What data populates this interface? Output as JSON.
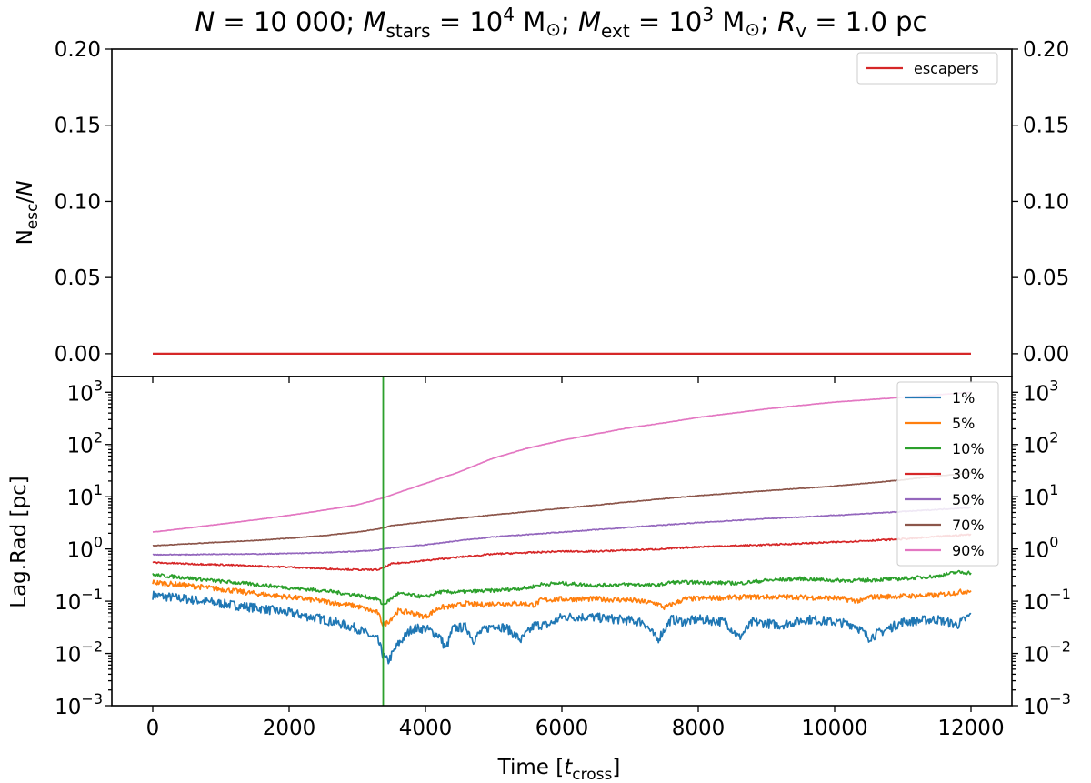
{
  "title": {
    "n_lhs": "N",
    "n_val": " = 10 000; ",
    "ms": "M",
    "ms_sub": "stars",
    "ms_eq": " = 10",
    "ms_exp": "4",
    "ms_unit": " M",
    "ms_sun": "⊙",
    "sep1": "; ",
    "me": "M",
    "me_sub": "ext",
    "me_eq": " = 10",
    "me_exp": "3",
    "me_unit": " M",
    "me_sun": "⊙",
    "sep2": "; ",
    "rv": "R",
    "rv_sub": "v",
    "rv_val": " = 1.0 pc"
  },
  "xlabel": {
    "main": "Time [",
    "t": "t",
    "sub": "cross",
    "end": "]"
  },
  "top_ylabel": {
    "main": "N",
    "sub": "esc",
    "slash": "/",
    "n": "N"
  },
  "bottom_ylabel": "Lag.Rad [pc]",
  "colors": {
    "escapers": "#d62728",
    "1%": "#1f77b4",
    "5%": "#ff7f0e",
    "10%": "#2ca02c",
    "30%": "#d62728",
    "50%": "#9467bd",
    "70%": "#8c564b",
    "90%": "#e377c2",
    "vline": "#2ca02c"
  },
  "chart_data": [
    {
      "type": "line",
      "panel": "top",
      "xlim": [
        -600,
        12600
      ],
      "ylim": [
        -0.015,
        0.2
      ],
      "yticks": [
        0.0,
        0.05,
        0.1,
        0.15,
        0.2
      ],
      "ytick_labels": [
        "0.00",
        "0.05",
        "0.10",
        "0.15",
        "0.20"
      ],
      "grid": false,
      "legend": "upper right",
      "series": [
        {
          "name": "escapers",
          "x": [
            0,
            12000
          ],
          "y": [
            0.0,
            0.0
          ]
        }
      ]
    },
    {
      "type": "line",
      "panel": "bottom",
      "yscale": "log",
      "xlim": [
        -600,
        12600
      ],
      "ylim": [
        0.001,
        2000
      ],
      "xticks": [
        0,
        2000,
        4000,
        6000,
        8000,
        10000,
        12000
      ],
      "xtick_labels": [
        "0",
        "2000",
        "4000",
        "6000",
        "8000",
        "10000",
        "12000"
      ],
      "ytick_labels": [
        {
          "base": "10",
          "exp": "−3",
          "v": 0.001
        },
        {
          "base": "10",
          "exp": "−2",
          "v": 0.01
        },
        {
          "base": "10",
          "exp": "−1",
          "v": 0.1
        },
        {
          "base": "10",
          "exp": "0",
          "v": 1
        },
        {
          "base": "10",
          "exp": "1",
          "v": 10
        },
        {
          "base": "10",
          "exp": "2",
          "v": 100
        },
        {
          "base": "10",
          "exp": "3",
          "v": 1000
        }
      ],
      "vline_x": 3380,
      "grid": false,
      "legend": "upper right",
      "series": [
        {
          "name": "1%",
          "x": [
            0,
            500,
            1000,
            1500,
            2000,
            2500,
            3000,
            3300,
            3380,
            3450,
            3600,
            3800,
            4000,
            4200,
            4300,
            4400,
            4600,
            4700,
            4800,
            5000,
            5200,
            5400,
            5600,
            5800,
            6000,
            6400,
            6800,
            7200,
            7400,
            7600,
            7800,
            8000,
            8400,
            8600,
            8800,
            9200,
            9600,
            10000,
            10300,
            10500,
            11000,
            11500,
            11800,
            12000
          ],
          "y": [
            0.13,
            0.11,
            0.09,
            0.075,
            0.06,
            0.045,
            0.03,
            0.018,
            0.009,
            0.007,
            0.015,
            0.03,
            0.03,
            0.022,
            0.012,
            0.03,
            0.032,
            0.018,
            0.025,
            0.035,
            0.03,
            0.018,
            0.035,
            0.035,
            0.05,
            0.05,
            0.045,
            0.04,
            0.018,
            0.045,
            0.04,
            0.045,
            0.04,
            0.02,
            0.04,
            0.035,
            0.045,
            0.04,
            0.035,
            0.02,
            0.04,
            0.045,
            0.035,
            0.055
          ]
        },
        {
          "name": "5%",
          "x": [
            0,
            500,
            1000,
            1500,
            2000,
            2500,
            3000,
            3300,
            3380,
            3450,
            3600,
            3800,
            4000,
            4200,
            4400,
            4600,
            4800,
            5000,
            5400,
            5600,
            5700,
            6000,
            6500,
            7000,
            7400,
            7500,
            7800,
            8200,
            8800,
            9400,
            10000,
            10400,
            10500,
            11000,
            11500,
            12000
          ],
          "y": [
            0.23,
            0.2,
            0.17,
            0.14,
            0.12,
            0.1,
            0.08,
            0.06,
            0.035,
            0.04,
            0.065,
            0.06,
            0.05,
            0.075,
            0.08,
            0.09,
            0.085,
            0.09,
            0.09,
            0.085,
            0.105,
            0.11,
            0.11,
            0.105,
            0.09,
            0.075,
            0.11,
            0.115,
            0.12,
            0.12,
            0.115,
            0.1,
            0.12,
            0.125,
            0.13,
            0.16
          ]
        },
        {
          "name": "10%",
          "x": [
            0,
            500,
            1000,
            1500,
            2000,
            2500,
            3000,
            3300,
            3380,
            3450,
            3600,
            3800,
            4000,
            4200,
            4500,
            5000,
            5500,
            5700,
            6000,
            6500,
            7000,
            7400,
            7600,
            8000,
            8600,
            9000,
            9500,
            10000,
            10400,
            11000,
            11500,
            11800,
            12000
          ],
          "y": [
            0.32,
            0.28,
            0.24,
            0.21,
            0.18,
            0.16,
            0.13,
            0.11,
            0.085,
            0.1,
            0.14,
            0.13,
            0.12,
            0.15,
            0.15,
            0.16,
            0.18,
            0.21,
            0.22,
            0.2,
            0.21,
            0.2,
            0.23,
            0.23,
            0.22,
            0.25,
            0.27,
            0.25,
            0.25,
            0.27,
            0.3,
            0.36,
            0.35
          ]
        },
        {
          "name": "30%",
          "x": [
            0,
            500,
            1000,
            1500,
            2000,
            2500,
            3000,
            3300,
            3380,
            3500,
            4000,
            4500,
            5000,
            5500,
            6000,
            6500,
            7000,
            7500,
            8000,
            9000,
            10000,
            11000,
            12000
          ],
          "y": [
            0.55,
            0.52,
            0.5,
            0.47,
            0.45,
            0.42,
            0.4,
            0.4,
            0.43,
            0.52,
            0.6,
            0.7,
            0.8,
            0.85,
            0.9,
            0.9,
            0.95,
            1.0,
            1.1,
            1.2,
            1.35,
            1.55,
            1.9
          ]
        },
        {
          "name": "50%",
          "x": [
            0,
            500,
            1000,
            1500,
            2000,
            2500,
            3000,
            3300,
            3500,
            4000,
            4500,
            5000,
            6000,
            7000,
            8000,
            9000,
            10000,
            11000,
            12000
          ],
          "y": [
            0.78,
            0.78,
            0.8,
            0.8,
            0.82,
            0.85,
            0.9,
            0.95,
            1.05,
            1.2,
            1.45,
            1.7,
            2.1,
            2.6,
            3.2,
            3.8,
            4.4,
            5.2,
            6.2
          ]
        },
        {
          "name": "70%",
          "x": [
            0,
            500,
            1000,
            1500,
            2000,
            2500,
            3000,
            3380,
            3500,
            4000,
            5000,
            6000,
            7000,
            8000,
            9000,
            10000,
            11000,
            12000
          ],
          "y": [
            1.15,
            1.25,
            1.35,
            1.45,
            1.6,
            1.8,
            2.1,
            2.5,
            2.8,
            3.3,
            4.5,
            6.0,
            8.0,
            10.5,
            13,
            16,
            21,
            29
          ]
        },
        {
          "name": "90%",
          "x": [
            0,
            500,
            1000,
            1500,
            2000,
            2500,
            3000,
            3380,
            3600,
            4000,
            4500,
            5000,
            5500,
            6000,
            6500,
            7000,
            7500,
            8000,
            9000,
            10000,
            11000,
            12000
          ],
          "y": [
            2.1,
            2.5,
            3.0,
            3.6,
            4.4,
            5.5,
            7.0,
            9.5,
            12,
            18,
            30,
            55,
            85,
            120,
            160,
            210,
            260,
            330,
            480,
            650,
            800,
            1000
          ]
        }
      ]
    }
  ]
}
